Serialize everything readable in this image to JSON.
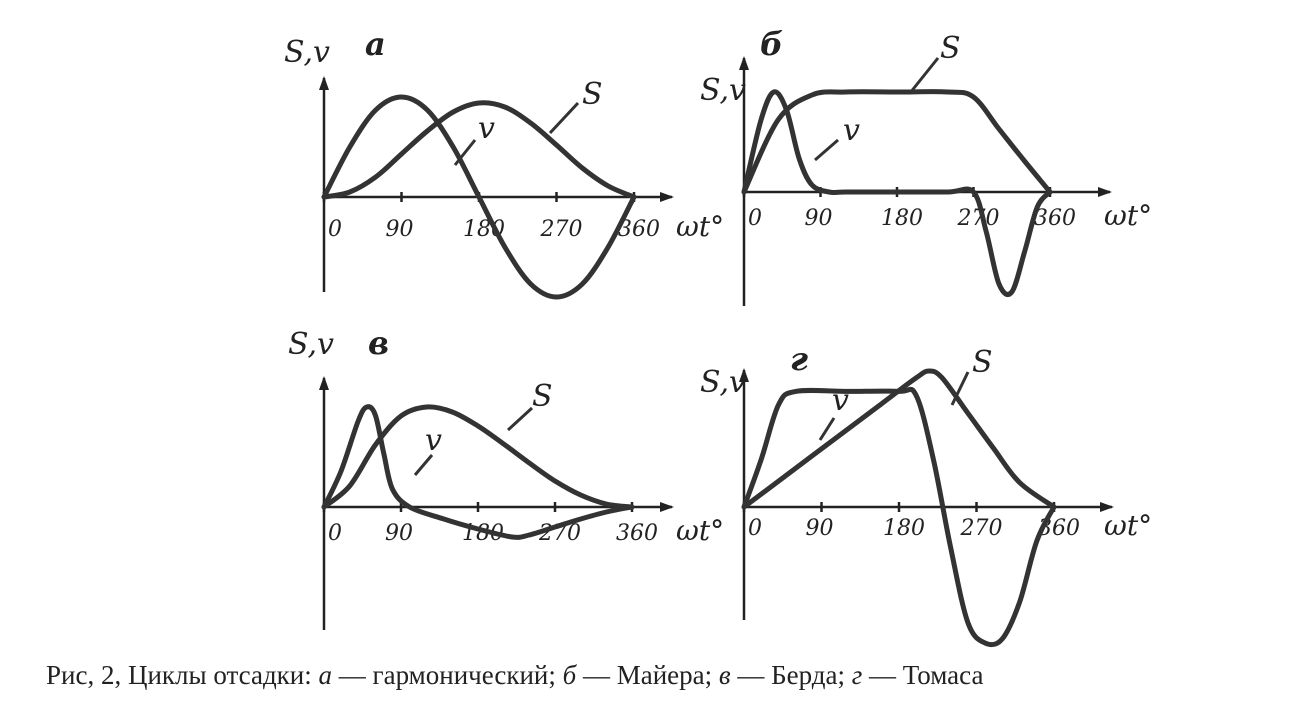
{
  "caption": {
    "prefix": "Рис,  2, Циклы отсадки: ",
    "items": [
      {
        "letter": "а",
        "text": " — гармонический; "
      },
      {
        "letter": "б",
        "text": " — Майера; "
      },
      {
        "letter": "в",
        "text": " — Берда; "
      },
      {
        "letter": "г",
        "text": " — Томаса"
      }
    ]
  },
  "chart_data": [
    {
      "type": "line",
      "panel_letter": "а",
      "ylabel": "S,v",
      "xlabel": "ωt°",
      "xticks": [
        "0",
        "90",
        "180",
        "270",
        "360"
      ],
      "xlim": [
        0,
        360
      ],
      "ylim": [
        -1,
        1
      ],
      "series": [
        {
          "name": "S",
          "x": [
            0,
            30,
            60,
            90,
            120,
            150,
            180,
            210,
            240,
            270,
            300,
            330,
            360
          ],
          "y": [
            0,
            0.05,
            0.2,
            0.43,
            0.66,
            0.85,
            0.94,
            0.9,
            0.74,
            0.52,
            0.29,
            0.11,
            0
          ]
        },
        {
          "name": "v",
          "x": [
            0,
            30,
            60,
            90,
            120,
            150,
            180,
            210,
            240,
            270,
            300,
            330,
            360
          ],
          "y": [
            0,
            0.5,
            0.87,
            1,
            0.87,
            0.5,
            0,
            -0.5,
            -0.87,
            -1,
            -0.87,
            -0.5,
            0
          ]
        }
      ]
    },
    {
      "type": "line",
      "panel_letter": "б",
      "ylabel": "S,v",
      "xlabel": "ωt°",
      "xticks": [
        "0",
        "90",
        "180",
        "270",
        "360"
      ],
      "xlim": [
        0,
        360
      ],
      "ylim": [
        -1,
        1
      ],
      "series": [
        {
          "name": "S",
          "x": [
            0,
            40,
            80,
            120,
            180,
            240,
            270,
            300,
            330,
            360
          ],
          "y": [
            0,
            0.72,
            0.97,
            1,
            1,
            1,
            0.95,
            0.63,
            0.31,
            0
          ]
        },
        {
          "name": "v",
          "x": [
            0,
            20,
            35,
            50,
            65,
            80,
            100,
            120,
            180,
            240,
            270,
            285,
            300,
            315,
            330,
            345,
            360
          ],
          "y": [
            0,
            0.72,
            1,
            0.82,
            0.33,
            0.07,
            0,
            0,
            0,
            0,
            0,
            -0.4,
            -0.92,
            -1,
            -0.6,
            -0.15,
            0
          ]
        }
      ]
    },
    {
      "type": "line",
      "panel_letter": "в",
      "ylabel": "S,v",
      "xlabel": "ωt°",
      "xticks": [
        "0",
        "90",
        "180",
        "270",
        "360"
      ],
      "xlim": [
        0,
        360
      ],
      "ylim": [
        -1,
        1
      ],
      "series": [
        {
          "name": "S",
          "x": [
            0,
            30,
            60,
            90,
            120,
            150,
            180,
            210,
            240,
            270,
            300,
            330,
            360
          ],
          "y": [
            0,
            0.21,
            0.62,
            0.91,
            1,
            0.95,
            0.81,
            0.63,
            0.44,
            0.26,
            0.12,
            0.03,
            0
          ]
        },
        {
          "name": "v",
          "x": [
            0,
            20,
            40,
            50,
            60,
            70,
            80,
            100,
            140,
            180,
            220,
            240,
            270,
            300,
            330,
            360
          ],
          "y": [
            0,
            0.36,
            0.86,
            1,
            0.92,
            0.53,
            0.18,
            0,
            -0.12,
            -0.22,
            -0.3,
            -0.28,
            -0.2,
            -0.12,
            -0.05,
            0
          ]
        }
      ]
    },
    {
      "type": "line",
      "panel_letter": "г",
      "ylabel": "S,v",
      "xlabel": "ωt°",
      "xticks": [
        "0",
        "90",
        "180",
        "270",
        "360"
      ],
      "xlim": [
        0,
        360
      ],
      "ylim": [
        -1,
        1
      ],
      "series": [
        {
          "name": "S",
          "x": [
            0,
            40,
            80,
            120,
            160,
            200,
            215,
            230,
            260,
            290,
            320,
            360
          ],
          "y": [
            0,
            0.19,
            0.38,
            0.57,
            0.76,
            0.95,
            1,
            0.95,
            0.69,
            0.43,
            0.18,
            0
          ]
        },
        {
          "name": "v",
          "x": [
            0,
            20,
            40,
            60,
            120,
            180,
            200,
            220,
            240,
            260,
            280,
            300,
            320,
            340,
            360
          ],
          "y": [
            0,
            0.35,
            0.75,
            0.85,
            0.85,
            0.85,
            0.82,
            0.35,
            -0.3,
            -0.85,
            -1,
            -0.97,
            -0.7,
            -0.25,
            0
          ]
        }
      ]
    }
  ]
}
